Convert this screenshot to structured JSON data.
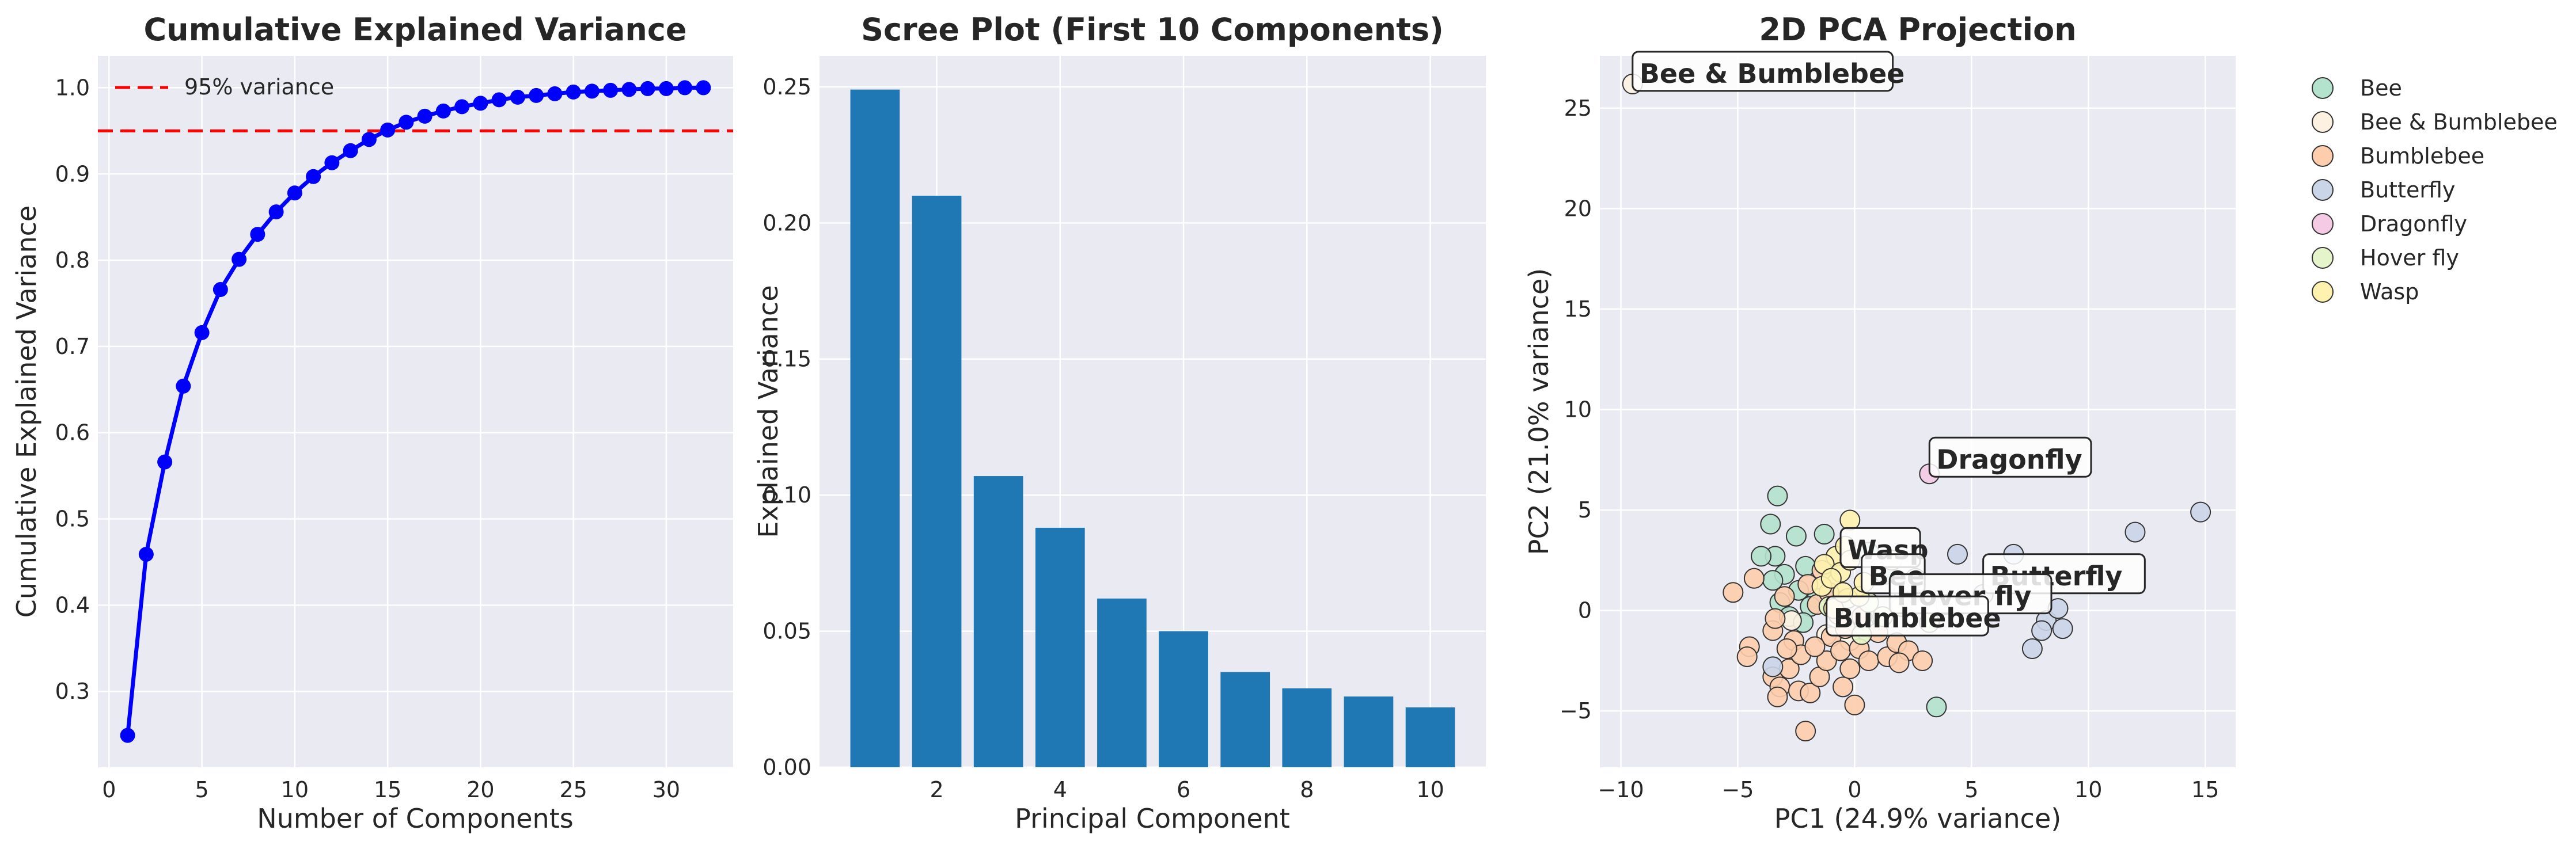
{
  "colors": {
    "panel_bg": "#eaeaf2",
    "grid": "#ffffff",
    "cumulative_line": "#0000ff",
    "threshold_line": "#ff0000",
    "bar": "#1f77b4",
    "text": "#262626",
    "category_colors": {
      "Bee": "#b3e2cd",
      "Bee & Bumblebee": "#fdf2e2",
      "Bumblebee": "#fdcdac",
      "Butterfly": "#cbd5e8",
      "Dragonfly": "#f4cae4",
      "Hover fly": "#e6f5c9",
      "Wasp": "#fff2ae"
    }
  },
  "chart_data": [
    {
      "type": "line",
      "title": "Cumulative Explained Variance",
      "xlabel": "Number of Components",
      "ylabel": "Cumulative Explained Variance",
      "x": [
        1,
        2,
        3,
        4,
        5,
        6,
        7,
        8,
        9,
        10,
        11,
        12,
        13,
        14,
        15,
        16,
        17,
        18,
        19,
        20,
        21,
        22,
        23,
        24,
        25,
        26,
        27,
        28,
        29,
        30,
        31,
        32
      ],
      "y": [
        0.249,
        0.459,
        0.566,
        0.654,
        0.716,
        0.766,
        0.801,
        0.83,
        0.856,
        0.878,
        0.897,
        0.913,
        0.927,
        0.94,
        0.951,
        0.96,
        0.967,
        0.973,
        0.978,
        0.982,
        0.986,
        0.989,
        0.991,
        0.993,
        0.995,
        0.996,
        0.997,
        0.998,
        0.999,
        0.999,
        1.0,
        1.0
      ],
      "xlim": [
        -0.6,
        33.6
      ],
      "ylim": [
        0.212,
        1.037
      ],
      "xticks": [
        0,
        5,
        10,
        15,
        20,
        25,
        30
      ],
      "yticks": [
        0.3,
        0.4,
        0.5,
        0.6,
        0.7,
        0.8,
        0.9,
        1.0
      ],
      "threshold": {
        "y": 0.95,
        "label": "95% variance"
      },
      "legend_position": "top-left",
      "grid": true
    },
    {
      "type": "bar",
      "title": "Scree Plot (First 10 Components)",
      "xlabel": "Principal Component",
      "ylabel": "Explained Variance",
      "x": [
        1,
        2,
        3,
        4,
        5,
        6,
        7,
        8,
        9,
        10
      ],
      "values": [
        0.249,
        0.21,
        0.107,
        0.088,
        0.062,
        0.05,
        0.035,
        0.029,
        0.026,
        0.022
      ],
      "xlim": [
        0.1,
        10.9
      ],
      "ylim": [
        0,
        0.2614
      ],
      "xticks": [
        2,
        4,
        6,
        8,
        10
      ],
      "yticks": [
        0.0,
        0.05,
        0.1,
        0.15,
        0.2,
        0.25
      ],
      "grid": true
    },
    {
      "type": "scatter",
      "title": "2D PCA Projection",
      "xlabel": "PC1 (24.9% variance)",
      "ylabel": "PC2 (21.0% variance)",
      "xlim": [
        -10.9,
        16.3
      ],
      "ylim": [
        -7.8,
        27.6
      ],
      "xticks": [
        -10,
        -5,
        0,
        5,
        10,
        15
      ],
      "yticks": [
        -5,
        0,
        5,
        10,
        15,
        20,
        25
      ],
      "grid": true,
      "legend_position": "outside-right",
      "series": [
        {
          "name": "Bee",
          "points": [
            [
              -3.3,
              5.7
            ],
            [
              -3.6,
              4.3
            ],
            [
              -2.5,
              3.7
            ],
            [
              -1.3,
              3.8
            ],
            [
              -3.4,
              2.7
            ],
            [
              -4.0,
              2.7
            ],
            [
              -2.1,
              2.2
            ],
            [
              -3.0,
              1.8
            ],
            [
              -3.5,
              1.5
            ],
            [
              -2.4,
              1.0
            ],
            [
              -1.6,
              0.6
            ],
            [
              -3.2,
              0.4
            ],
            [
              -2.8,
              -0.3
            ],
            [
              -1.9,
              0.2
            ],
            [
              2.1,
              1.0
            ],
            [
              2.6,
              1.6
            ],
            [
              1.3,
              1.8
            ],
            [
              3.5,
              -4.8
            ],
            [
              -0.8,
              0.5
            ],
            [
              -2.2,
              -0.6
            ],
            [
              0.6,
              2.9
            ]
          ]
        },
        {
          "name": "Bee & Bumblebee",
          "points": [
            [
              -9.5,
              26.2
            ],
            [
              -2.7,
              -0.5
            ],
            [
              -1.2,
              -1.2
            ],
            [
              -0.2,
              -1.5
            ],
            [
              0.4,
              -0.8
            ]
          ]
        },
        {
          "name": "Bumblebee",
          "points": [
            [
              -5.2,
              0.9
            ],
            [
              -4.3,
              1.6
            ],
            [
              -4.5,
              -1.8
            ],
            [
              -4.6,
              -2.3
            ],
            [
              -3.5,
              -1.0
            ],
            [
              -3.4,
              -0.4
            ],
            [
              -3.5,
              -3.3
            ],
            [
              -3.2,
              -3.8
            ],
            [
              -3.3,
              -4.3
            ],
            [
              -2.8,
              -2.9
            ],
            [
              -2.6,
              -1.5
            ],
            [
              -2.3,
              -2.2
            ],
            [
              -2.1,
              -6.0
            ],
            [
              -2.4,
              -4.0
            ],
            [
              -1.9,
              -4.1
            ],
            [
              -1.5,
              -3.3
            ],
            [
              -1.2,
              -2.5
            ],
            [
              -1.0,
              -1.3
            ],
            [
              -0.6,
              -2.0
            ],
            [
              -0.2,
              -2.9
            ],
            [
              0.0,
              -4.7
            ],
            [
              -0.5,
              -3.8
            ],
            [
              0.2,
              -1.9
            ],
            [
              0.6,
              -2.5
            ],
            [
              1.0,
              -1.1
            ],
            [
              1.4,
              -2.3
            ],
            [
              1.8,
              -1.6
            ],
            [
              2.3,
              -2.0
            ],
            [
              2.9,
              -2.5
            ],
            [
              -1.6,
              0.3
            ],
            [
              -1.1,
              0.9
            ],
            [
              -0.7,
              -0.2
            ],
            [
              -2.0,
              1.3
            ],
            [
              -1.4,
              2.0
            ],
            [
              -2.9,
              -1.9
            ],
            [
              -3.0,
              0.7
            ],
            [
              -0.4,
              -0.9
            ],
            [
              0.3,
              -0.3
            ],
            [
              -1.7,
              -1.8
            ],
            [
              1.9,
              -2.6
            ]
          ]
        },
        {
          "name": "Butterfly",
          "points": [
            [
              14.8,
              4.9
            ],
            [
              12.0,
              3.9
            ],
            [
              6.8,
              2.8
            ],
            [
              4.4,
              2.8
            ],
            [
              8.2,
              -0.5
            ],
            [
              8.9,
              -0.9
            ],
            [
              8.7,
              0.1
            ],
            [
              8.0,
              -1.0
            ],
            [
              7.6,
              -1.9
            ],
            [
              5.5,
              0.8
            ],
            [
              -3.5,
              -2.8
            ],
            [
              3.9,
              0.3
            ]
          ]
        },
        {
          "name": "Dragonfly",
          "points": [
            [
              3.2,
              6.8
            ]
          ]
        },
        {
          "name": "Hover fly",
          "points": [
            [
              1.2,
              -0.3
            ],
            [
              0.6,
              0.4
            ],
            [
              -0.3,
              0.6
            ],
            [
              2.0,
              0.2
            ],
            [
              3.2,
              -0.6
            ],
            [
              0.3,
              -1.2
            ],
            [
              -1.1,
              0.2
            ]
          ]
        },
        {
          "name": "Wasp",
          "points": [
            [
              -0.8,
              2.7
            ],
            [
              -0.4,
              3.2
            ],
            [
              -1.3,
              2.3
            ],
            [
              -0.6,
              1.9
            ],
            [
              -0.2,
              2.5
            ],
            [
              -1.4,
              1.2
            ],
            [
              0.2,
              0.7
            ],
            [
              -0.9,
              0.1
            ],
            [
              0.4,
              1.4
            ],
            [
              -1.0,
              1.6
            ],
            [
              -0.2,
              4.5
            ],
            [
              1.6,
              2.5
            ],
            [
              -0.5,
              0.9
            ]
          ]
        }
      ],
      "annotations": [
        {
          "text": "Bee & Bumblebee",
          "x": -9.5,
          "y": 26.2
        },
        {
          "text": "Dragonfly",
          "x": 3.2,
          "y": 7.0
        },
        {
          "text": "Wasp",
          "x": -0.6,
          "y": 2.5
        },
        {
          "text": "Bee",
          "x": 0.3,
          "y": 1.2
        },
        {
          "text": "Butterfly",
          "x": 5.5,
          "y": 1.2
        },
        {
          "text": "Hover fly",
          "x": 1.5,
          "y": 0.2
        },
        {
          "text": "Bumblebee",
          "x": -1.2,
          "y": -0.9
        }
      ]
    }
  ]
}
